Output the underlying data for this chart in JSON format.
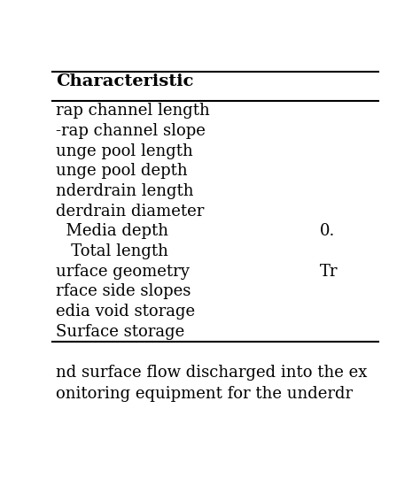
{
  "header": "Characteristic",
  "rows": [
    [
      "rap channel length",
      ""
    ],
    [
      "-rap channel slope",
      ""
    ],
    [
      "unge pool length",
      ""
    ],
    [
      "unge pool depth",
      ""
    ],
    [
      "nderdrain length",
      ""
    ],
    [
      "derdrain diameter",
      ""
    ],
    [
      "  Media depth",
      "0."
    ],
    [
      "   Total length",
      ""
    ],
    [
      "urface geometry",
      "Tr"
    ],
    [
      "rface side slopes",
      ""
    ],
    [
      "edia void storage",
      ""
    ],
    [
      "Surface storage",
      ""
    ]
  ],
  "header_fontsize": 14,
  "row_fontsize": 13,
  "bg_color": "#ffffff",
  "text_color": "#000000",
  "footer_text1": "nd surface flow discharged into the ex",
  "footer_text2": "onitoring equipment for the underdr",
  "footer_fontsize": 13
}
